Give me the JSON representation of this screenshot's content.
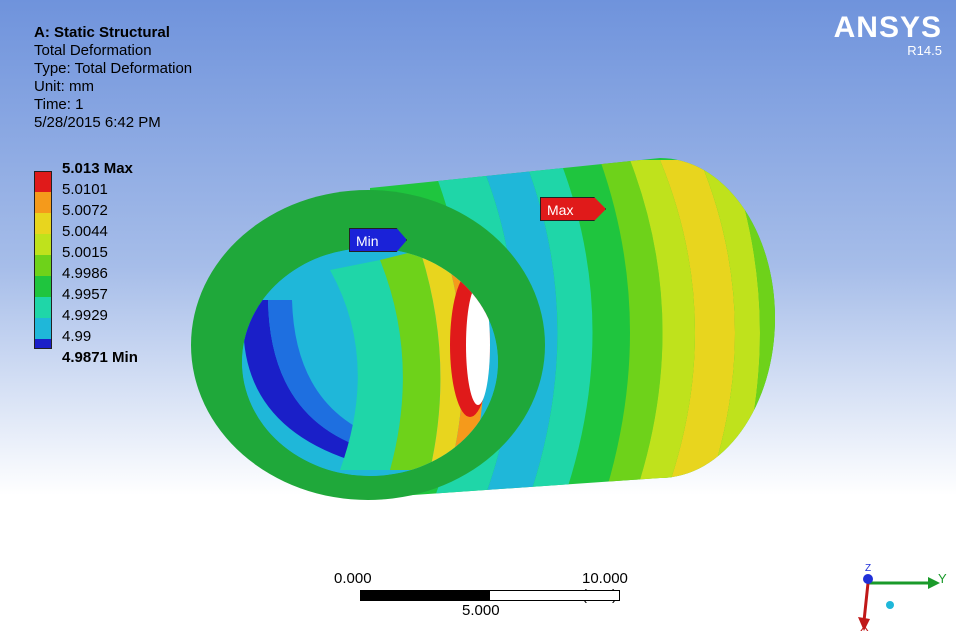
{
  "header": {
    "analysis_title": "A: Static Structural",
    "result_name": "Total Deformation",
    "type_line": "Type: Total Deformation",
    "unit_line": "Unit: mm",
    "time_line": "Time: 1",
    "timestamp": "5/28/2015 6:42 PM"
  },
  "brand": {
    "logo": "ANSYS",
    "version": "R14.5"
  },
  "legend": {
    "items": [
      {
        "label": "5.013 Max",
        "color": "#e01a1a",
        "bold": true
      },
      {
        "label": "5.0101",
        "color": "#f59a1b",
        "bold": false
      },
      {
        "label": "5.0072",
        "color": "#e8d51e",
        "bold": false
      },
      {
        "label": "5.0044",
        "color": "#bfe21c",
        "bold": false
      },
      {
        "label": "5.0015",
        "color": "#6ed21a",
        "bold": false
      },
      {
        "label": "4.9986",
        "color": "#1fc53e",
        "bold": false
      },
      {
        "label": "4.9957",
        "color": "#1fd6a8",
        "bold": false
      },
      {
        "label": "4.9929",
        "color": "#1fb7d9",
        "bold": false
      },
      {
        "label": "4.99",
        "color": "#1e6fe0",
        "bold": false
      },
      {
        "label": "4.9871 Min",
        "color": "#1a1fc8",
        "bold": true
      }
    ]
  },
  "probes": {
    "min_label": "Min",
    "max_label": "Max",
    "min_color": "#1a22d8",
    "max_color": "#e01a1a"
  },
  "scale_bar": {
    "left_label": "0.000",
    "right_label": "10.000 (mm)",
    "mid_label": "5.000"
  },
  "triad": {
    "y_label": "Y",
    "z_label": "Z",
    "x_label": "X"
  }
}
